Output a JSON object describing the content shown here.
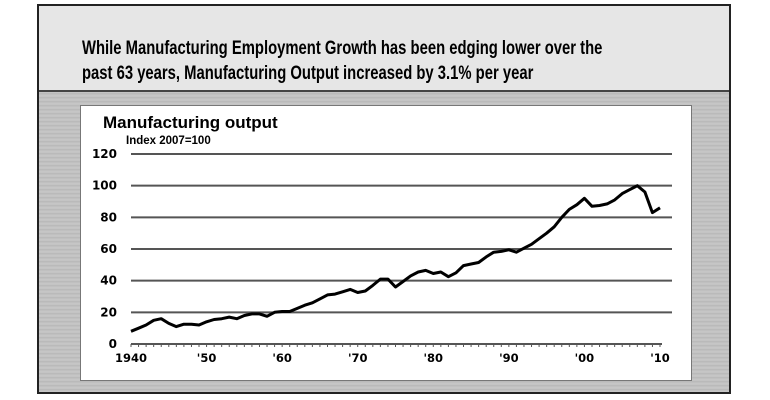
{
  "headline": {
    "line1": "While Manufacturing Employment Growth has been edging lower over the",
    "line2": "past 63 years, Manufacturing Output increased by 3.1% per year"
  },
  "chart_data": {
    "type": "line",
    "title": "Manufacturing output",
    "subtitle": "Index 2007=100",
    "xlabel": "",
    "ylabel": "",
    "xlim": [
      1940,
      2010
    ],
    "ylim": [
      0,
      120
    ],
    "yticks": [
      0,
      20,
      40,
      60,
      80,
      100,
      120
    ],
    "xtick_values": [
      1940,
      1950,
      1960,
      1970,
      1980,
      1990,
      2000,
      2010
    ],
    "xtick_labels": [
      "1940",
      "'50",
      "'60",
      "'70",
      "'80",
      "'90",
      "'00",
      "'10"
    ],
    "grid": "horizontal",
    "line_color": "#000000",
    "x": [
      1940,
      1941,
      1942,
      1943,
      1944,
      1945,
      1946,
      1947,
      1948,
      1949,
      1950,
      1951,
      1952,
      1953,
      1954,
      1955,
      1956,
      1957,
      1958,
      1959,
      1960,
      1961,
      1962,
      1963,
      1964,
      1965,
      1966,
      1967,
      1968,
      1969,
      1970,
      1971,
      1972,
      1973,
      1974,
      1975,
      1976,
      1977,
      1978,
      1979,
      1980,
      1981,
      1982,
      1983,
      1984,
      1985,
      1986,
      1987,
      1988,
      1989,
      1990,
      1991,
      1992,
      1993,
      1994,
      1995,
      1996,
      1997,
      1998,
      1999,
      2000,
      2001,
      2002,
      2003,
      2004,
      2005,
      2006,
      2007,
      2008,
      2009,
      2010
    ],
    "values": [
      8,
      10,
      12,
      15,
      16,
      13,
      11,
      12.5,
      12.5,
      12,
      14,
      15.5,
      16,
      17,
      16,
      18,
      19,
      19,
      17.5,
      20,
      20.5,
      20.5,
      22.5,
      24.5,
      26,
      28.5,
      31,
      31.5,
      33,
      34.5,
      32.5,
      33.5,
      37,
      41,
      41,
      36,
      39.5,
      43,
      45.5,
      46.5,
      44.5,
      45.5,
      42.5,
      45,
      49.5,
      50.5,
      51.5,
      55,
      58,
      58.5,
      59.5,
      58,
      60.5,
      63,
      66.5,
      70,
      74,
      80,
      85,
      88,
      92,
      87,
      87.5,
      88.5,
      91,
      95,
      97.5,
      100,
      96,
      83,
      86
    ]
  }
}
